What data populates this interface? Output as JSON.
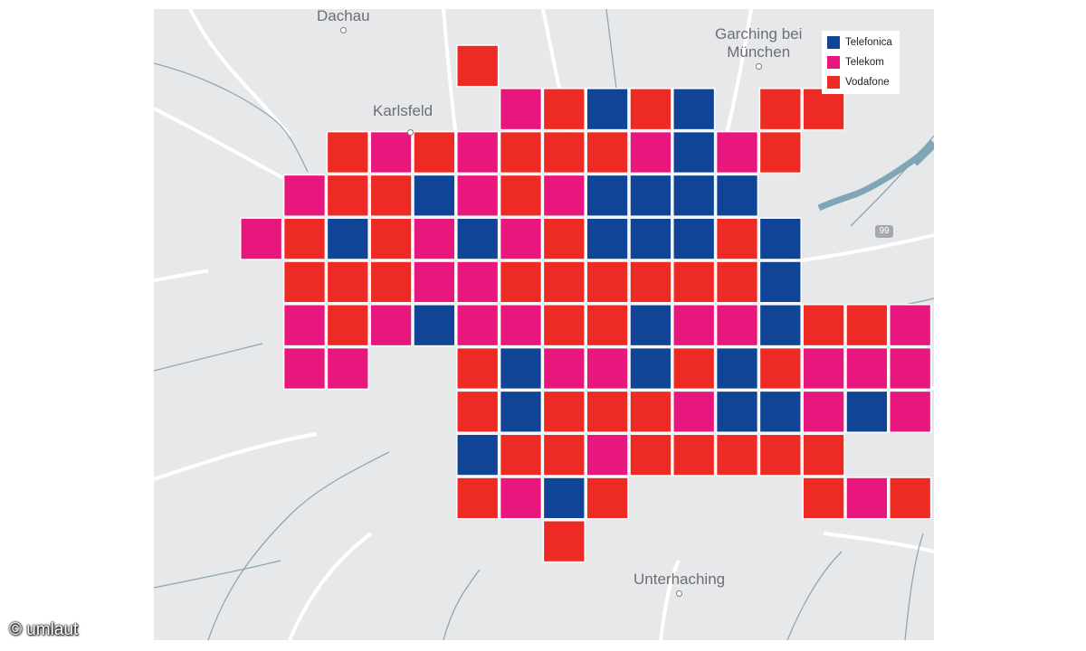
{
  "map": {
    "places": [
      {
        "id": "dachau",
        "label": "Dachau"
      },
      {
        "id": "garching",
        "label": "Garching bei\nMünchen"
      },
      {
        "id": "karlsfeld",
        "label": "Karlsfeld"
      },
      {
        "id": "unterhaching",
        "label": "Unterhaching"
      }
    ],
    "road_shield": "99",
    "colors": {
      "Telefonica": "#0f4497",
      "Telekom": "#e8177d",
      "Vodafone": "#ee2a24",
      "background": "#e7e8ea",
      "water": "#7fa6b4",
      "boundary": "#8fa6b4"
    }
  },
  "legend": {
    "items": [
      {
        "name": "Telefonica",
        "color": "#0f4497"
      },
      {
        "name": "Telekom",
        "color": "#e8177d"
      },
      {
        "name": "Vodafone",
        "color": "#ee2a24"
      }
    ]
  },
  "grid": {
    "col_start": 1,
    "rows": [
      {
        "row": 1,
        "cells": "......V......."
      },
      {
        "row": 2,
        "cells": ".......KVTVT.VV"
      },
      {
        "row": 3,
        "cells": "...VKVKVVVKTKV."
      },
      {
        "row": 4,
        "cells": "..KVVTKVKTTTT.."
      },
      {
        "row": 5,
        "cells": ".KVTVKTKVTTTVT."
      },
      {
        "row": 6,
        "cells": "..VVVKKVVVVVVT."
      },
      {
        "row": 7,
        "cells": "..KVKTKKVVTKKTVVK"
      },
      {
        "row": 8,
        "cells": "..KK..VTKKTVTVKKK"
      },
      {
        "row": 9,
        "cells": "......VTVVVKTTKTK"
      },
      {
        "row": 10,
        "cells": "......TVVKVVVVV"
      },
      {
        "row": 11,
        "cells": "......VKTV....VKV"
      },
      {
        "row": 12,
        "cells": "........V"
      }
    ]
  },
  "copyright": "© umlaut"
}
